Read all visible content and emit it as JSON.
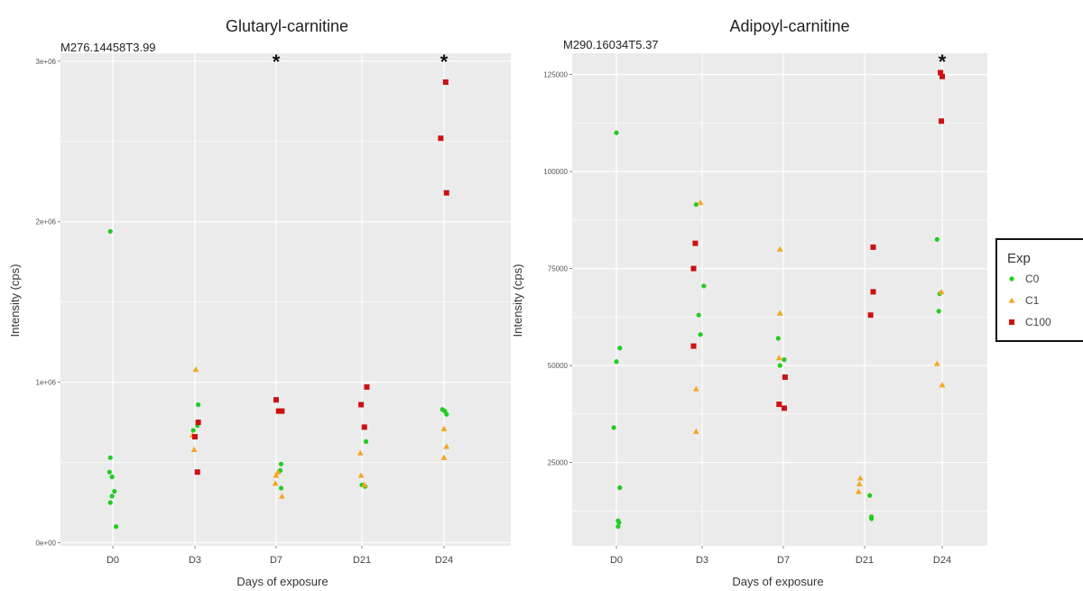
{
  "colors": {
    "C0": "#22cc22",
    "C1": "#f5a623",
    "C100": "#cc1111",
    "panel": "#ebebeb",
    "grid": "#ffffff"
  },
  "legend": {
    "title": "Exp",
    "entries": [
      {
        "name": "C0",
        "shape": "circle",
        "color": "#22cc22"
      },
      {
        "name": "C1",
        "shape": "triangle",
        "color": "#f5a623"
      },
      {
        "name": "C100",
        "shape": "square",
        "color": "#cc1111"
      }
    ]
  },
  "chart_data": [
    {
      "type": "scatter",
      "title": "Glutaryl-carnitine",
      "subtitle": "M276.14458T3.99",
      "xlabel": "Days of exposure",
      "ylabel": "Intensity (cps)",
      "categories": [
        "D0",
        "D3",
        "D7",
        "D21",
        "D24"
      ],
      "ylim": [
        -20000,
        3050000
      ],
      "yticks": [
        0,
        1000000,
        2000000,
        3000000
      ],
      "ytick_labels": [
        "0e+00",
        "1e+06",
        "2e+06",
        "3e+06"
      ],
      "grid": true,
      "significance": [
        {
          "category": "D7",
          "label": "*"
        },
        {
          "category": "D24",
          "label": "*"
        }
      ],
      "series": [
        {
          "name": "C0",
          "points": [
            {
              "x": "D0",
              "dx": -0.03,
              "y": 1940000
            },
            {
              "x": "D0",
              "dx": -0.03,
              "y": 530000
            },
            {
              "x": "D0",
              "dx": -0.04,
              "y": 440000
            },
            {
              "x": "D0",
              "dx": -0.01,
              "y": 410000
            },
            {
              "x": "D0",
              "dx": 0.02,
              "y": 320000
            },
            {
              "x": "D0",
              "dx": -0.01,
              "y": 290000
            },
            {
              "x": "D0",
              "dx": -0.03,
              "y": 250000
            },
            {
              "x": "D0",
              "dx": 0.04,
              "y": 100000
            },
            {
              "x": "D3",
              "dx": 0.04,
              "y": 860000
            },
            {
              "x": "D3",
              "dx": 0.03,
              "y": 730000
            },
            {
              "x": "D3",
              "dx": -0.02,
              "y": 700000
            },
            {
              "x": "D7",
              "dx": 0.06,
              "y": 490000
            },
            {
              "x": "D7",
              "dx": 0.05,
              "y": 450000
            },
            {
              "x": "D7",
              "dx": 0.06,
              "y": 340000
            },
            {
              "x": "D21",
              "dx": 0.05,
              "y": 630000
            },
            {
              "x": "D21",
              "dx": 0.0,
              "y": 360000
            },
            {
              "x": "D21",
              "dx": 0.04,
              "y": 350000
            },
            {
              "x": "D24",
              "dx": -0.02,
              "y": 830000
            },
            {
              "x": "D24",
              "dx": 0.01,
              "y": 820000
            },
            {
              "x": "D24",
              "dx": 0.03,
              "y": 800000
            }
          ]
        },
        {
          "name": "C1",
          "points": [
            {
              "x": "D3",
              "dx": 0.01,
              "y": 1080000
            },
            {
              "x": "D3",
              "dx": -0.03,
              "y": 670000
            },
            {
              "x": "D3",
              "dx": -0.01,
              "y": 580000
            },
            {
              "x": "D7",
              "dx": 0.02,
              "y": 440000
            },
            {
              "x": "D7",
              "dx": 0.0,
              "y": 420000
            },
            {
              "x": "D7",
              "dx": -0.01,
              "y": 370000
            },
            {
              "x": "D7",
              "dx": 0.07,
              "y": 290000
            },
            {
              "x": "D21",
              "dx": -0.02,
              "y": 560000
            },
            {
              "x": "D21",
              "dx": -0.01,
              "y": 420000
            },
            {
              "x": "D21",
              "dx": 0.03,
              "y": 360000
            },
            {
              "x": "D24",
              "dx": 0.0,
              "y": 710000
            },
            {
              "x": "D24",
              "dx": 0.03,
              "y": 600000
            },
            {
              "x": "D24",
              "dx": 0.0,
              "y": 530000
            }
          ]
        },
        {
          "name": "C100",
          "points": [
            {
              "x": "D3",
              "dx": 0.04,
              "y": 750000
            },
            {
              "x": "D3",
              "dx": 0.0,
              "y": 660000
            },
            {
              "x": "D3",
              "dx": 0.03,
              "y": 440000
            },
            {
              "x": "D7",
              "dx": 0.0,
              "y": 890000
            },
            {
              "x": "D7",
              "dx": 0.03,
              "y": 820000
            },
            {
              "x": "D7",
              "dx": 0.07,
              "y": 820000
            },
            {
              "x": "D21",
              "dx": 0.06,
              "y": 970000
            },
            {
              "x": "D21",
              "dx": -0.01,
              "y": 860000
            },
            {
              "x": "D21",
              "dx": 0.03,
              "y": 720000
            },
            {
              "x": "D24",
              "dx": 0.02,
              "y": 2870000
            },
            {
              "x": "D24",
              "dx": -0.04,
              "y": 2520000
            },
            {
              "x": "D24",
              "dx": 0.03,
              "y": 2180000
            }
          ]
        }
      ]
    },
    {
      "type": "scatter",
      "title": "Adipoyl-carnitine",
      "subtitle": "M290.16034T5.37",
      "xlabel": "Days of exposure",
      "ylabel": "Intensity (cps)",
      "categories": [
        "D0",
        "D3",
        "D7",
        "D21",
        "D24"
      ],
      "ylim": [
        3500,
        130500
      ],
      "yticks": [
        25000,
        50000,
        75000,
        100000,
        125000
      ],
      "ytick_labels": [
        "25000",
        "50000",
        "75000",
        "100000",
        "125000"
      ],
      "grid": true,
      "significance": [
        {
          "category": "D24",
          "label": "*"
        }
      ],
      "series": [
        {
          "name": "C0",
          "points": [
            {
              "x": "D0",
              "dx": 0.0,
              "y": 110000
            },
            {
              "x": "D0",
              "dx": 0.04,
              "y": 54500
            },
            {
              "x": "D0",
              "dx": 0.0,
              "y": 51000
            },
            {
              "x": "D0",
              "dx": -0.03,
              "y": 34000
            },
            {
              "x": "D0",
              "dx": 0.04,
              "y": 18500
            },
            {
              "x": "D0",
              "dx": 0.02,
              "y": 10000
            },
            {
              "x": "D0",
              "dx": 0.03,
              "y": 9500
            },
            {
              "x": "D0",
              "dx": 0.02,
              "y": 8500
            },
            {
              "x": "D3",
              "dx": -0.07,
              "y": 91500
            },
            {
              "x": "D3",
              "dx": 0.02,
              "y": 70500
            },
            {
              "x": "D3",
              "dx": -0.04,
              "y": 63000
            },
            {
              "x": "D3",
              "dx": -0.02,
              "y": 58000
            },
            {
              "x": "D7",
              "dx": -0.06,
              "y": 57000
            },
            {
              "x": "D7",
              "dx": 0.01,
              "y": 51500
            },
            {
              "x": "D7",
              "dx": -0.04,
              "y": 50000
            },
            {
              "x": "D21",
              "dx": 0.06,
              "y": 16500
            },
            {
              "x": "D21",
              "dx": 0.08,
              "y": 11000
            },
            {
              "x": "D21",
              "dx": 0.08,
              "y": 10500
            },
            {
              "x": "D24",
              "dx": -0.06,
              "y": 82500
            },
            {
              "x": "D24",
              "dx": -0.03,
              "y": 68500
            },
            {
              "x": "D24",
              "dx": -0.04,
              "y": 64000
            }
          ]
        },
        {
          "name": "C1",
          "points": [
            {
              "x": "D3",
              "dx": -0.02,
              "y": 92000
            },
            {
              "x": "D3",
              "dx": -0.07,
              "y": 44000
            },
            {
              "x": "D3",
              "dx": -0.07,
              "y": 33000
            },
            {
              "x": "D7",
              "dx": -0.04,
              "y": 80000
            },
            {
              "x": "D7",
              "dx": -0.04,
              "y": 63500
            },
            {
              "x": "D7",
              "dx": -0.05,
              "y": 52000
            },
            {
              "x": "D21",
              "dx": -0.05,
              "y": 21000
            },
            {
              "x": "D21",
              "dx": -0.06,
              "y": 19500
            },
            {
              "x": "D21",
              "dx": -0.07,
              "y": 17500
            },
            {
              "x": "D24",
              "dx": -0.01,
              "y": 69000
            },
            {
              "x": "D24",
              "dx": -0.06,
              "y": 50500
            },
            {
              "x": "D24",
              "dx": 0.0,
              "y": 45000
            }
          ]
        },
        {
          "name": "C100",
          "points": [
            {
              "x": "D3",
              "dx": -0.08,
              "y": 81500
            },
            {
              "x": "D3",
              "dx": -0.1,
              "y": 75000
            },
            {
              "x": "D3",
              "dx": -0.1,
              "y": 55000
            },
            {
              "x": "D7",
              "dx": 0.02,
              "y": 47000
            },
            {
              "x": "D7",
              "dx": -0.05,
              "y": 40000
            },
            {
              "x": "D7",
              "dx": 0.01,
              "y": 39000
            },
            {
              "x": "D21",
              "dx": 0.1,
              "y": 80500
            },
            {
              "x": "D21",
              "dx": 0.1,
              "y": 69000
            },
            {
              "x": "D21",
              "dx": 0.07,
              "y": 63000
            },
            {
              "x": "D24",
              "dx": -0.02,
              "y": 125500
            },
            {
              "x": "D24",
              "dx": 0.0,
              "y": 124500
            },
            {
              "x": "D24",
              "dx": -0.01,
              "y": 113000
            }
          ]
        }
      ]
    }
  ]
}
